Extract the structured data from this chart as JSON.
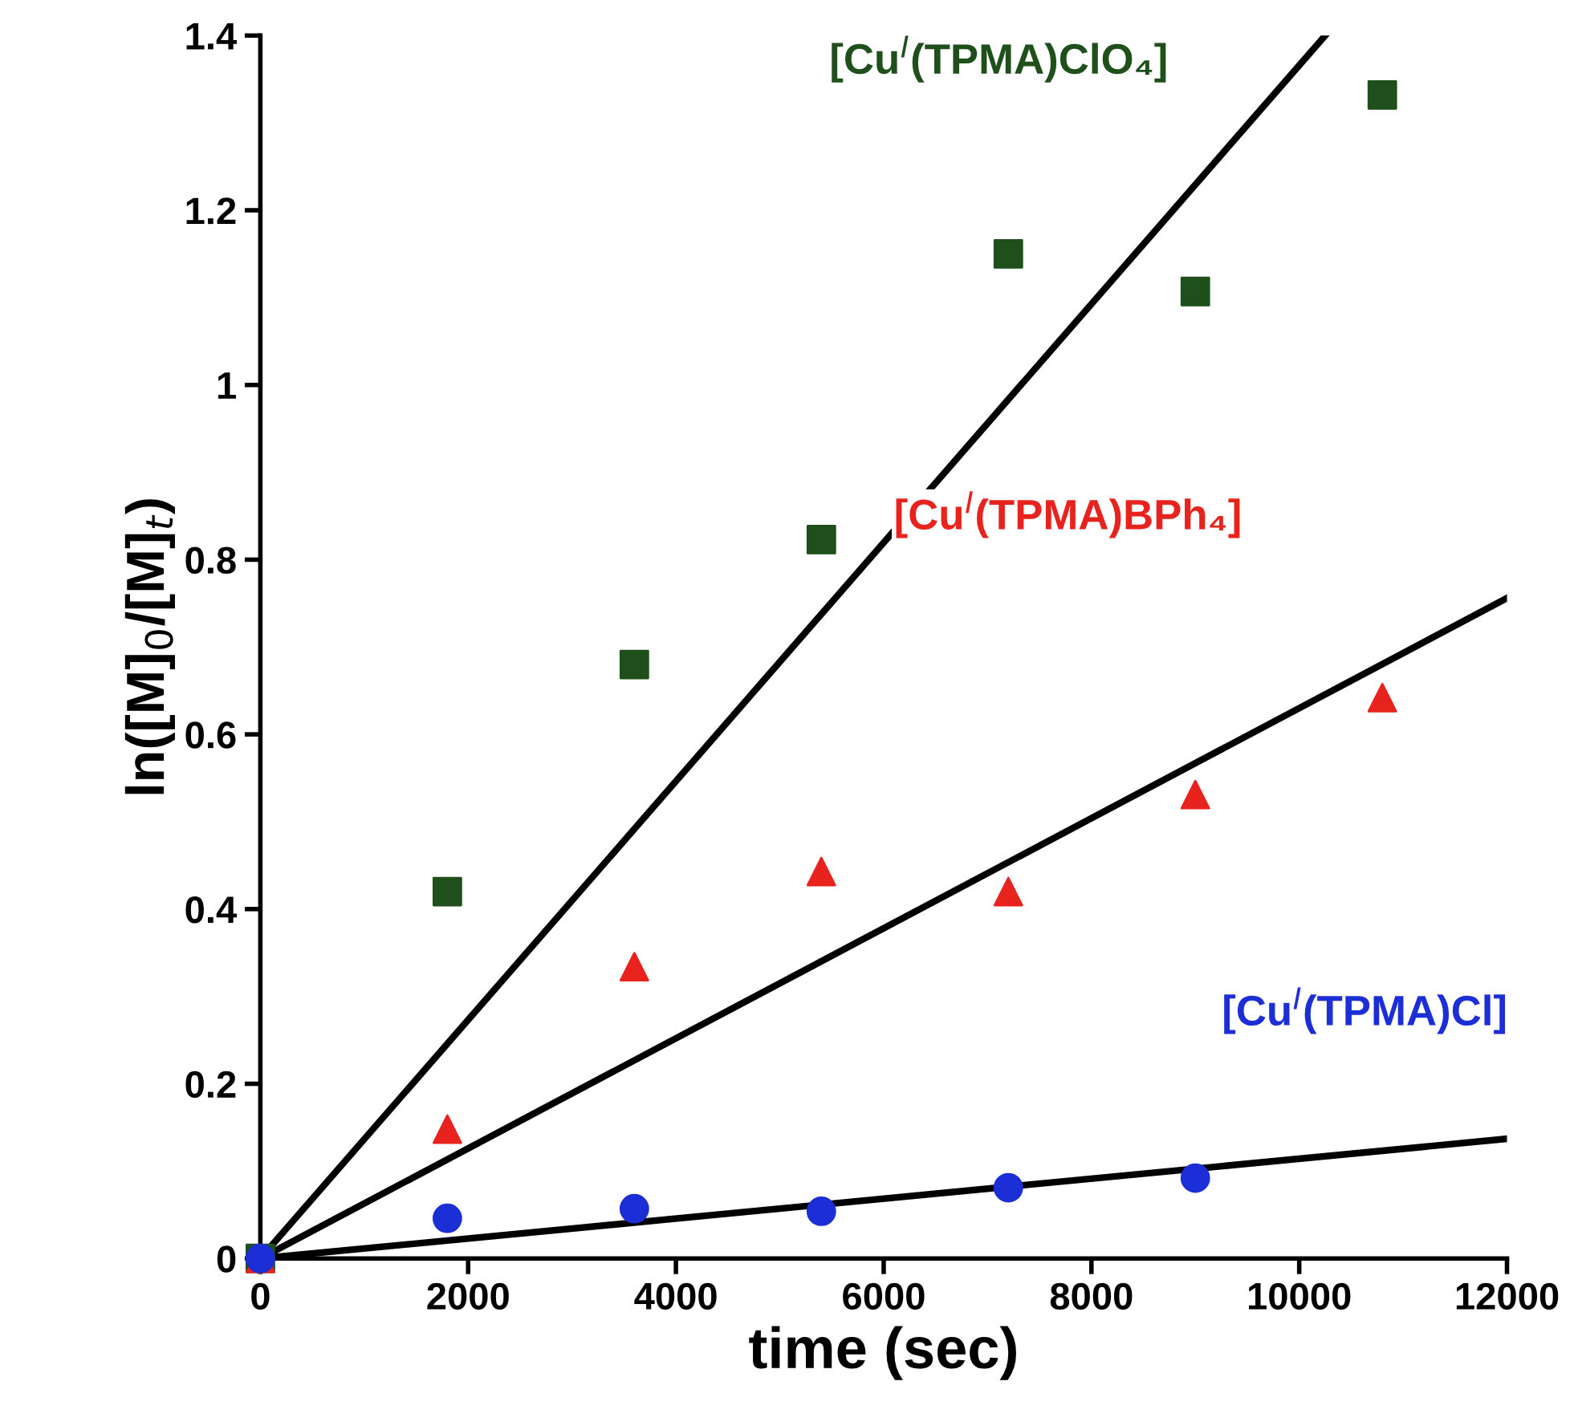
{
  "chart_data": {
    "type": "scatter",
    "xlabel": "time (sec)",
    "ylabel": "ln([M]$_{0}$/[M]$_{t}$)",
    "xlim": [
      0,
      12000
    ],
    "ylim": [
      0,
      1.4
    ],
    "xticks": [
      0,
      2000,
      4000,
      6000,
      8000,
      10000,
      12000
    ],
    "yticks": [
      0,
      0.2,
      0.4,
      0.6,
      0.8,
      1,
      1.2,
      1.4
    ],
    "grid": false,
    "legend": false,
    "series": [
      {
        "name": "[Cu$^{I}$(TPMA)ClO₄]",
        "marker": "square",
        "color": "#1f4f1a",
        "x": [
          0,
          1800,
          3600,
          5400,
          7200,
          9000,
          10800
        ],
        "values": [
          0,
          0.42,
          0.68,
          0.823,
          1.15,
          1.107,
          1.332
        ]
      },
      {
        "name": "[Cu$^{I}$(TPMA)BPh₄]",
        "marker": "triangle",
        "color": "#e8231e",
        "x": [
          0,
          1800,
          3600,
          5400,
          7200,
          9000,
          10800
        ],
        "values": [
          0,
          0.148,
          0.334,
          0.443,
          0.42,
          0.531,
          0.642
        ]
      },
      {
        "name": "[Cu$^{I}$(TPMA)Cl]",
        "marker": "circle",
        "color": "#1c2fd6",
        "x": [
          0,
          1800,
          3600,
          5400,
          7200,
          9000
        ],
        "values": [
          0,
          0.046,
          0.057,
          0.054,
          0.081,
          0.092
        ]
      },
      {
        "type": "line",
        "color": "#000000",
        "line_style": "solid",
        "x": [
          0,
          10250
        ],
        "values": [
          0,
          1.4
        ]
      },
      {
        "type": "line",
        "color": "#000000",
        "line_style": "solid",
        "x": [
          0,
          12000
        ],
        "values": [
          0,
          0.756
        ]
      },
      {
        "type": "line",
        "color": "#000000",
        "line_style": "solid",
        "x": [
          0,
          12000
        ],
        "values": [
          0,
          0.137
        ]
      }
    ]
  }
}
